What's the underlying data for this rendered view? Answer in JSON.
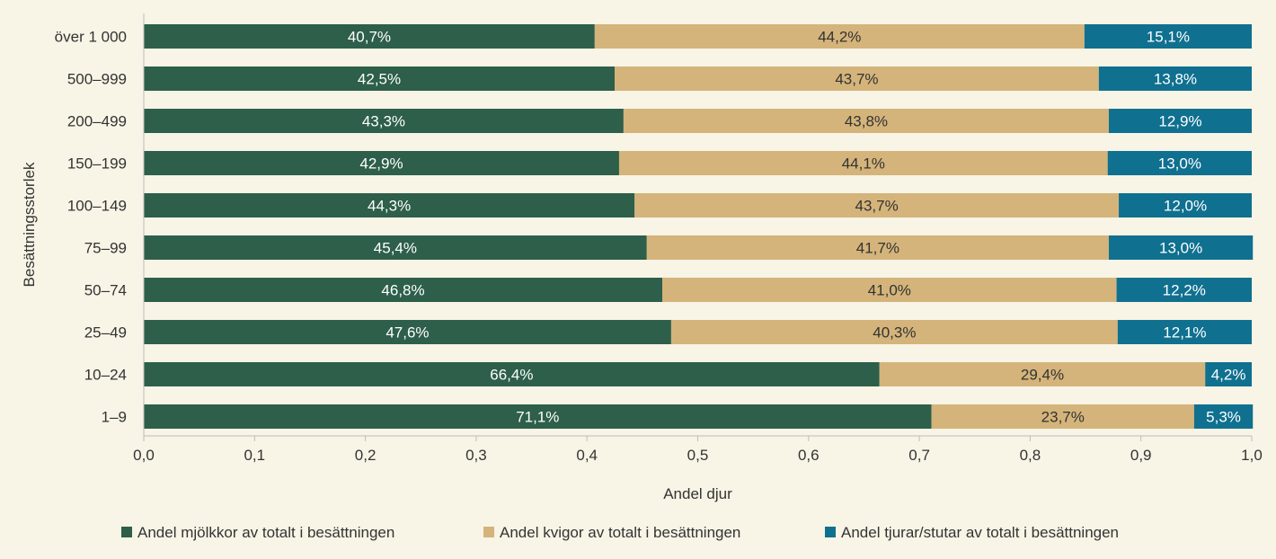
{
  "chart_data": {
    "type": "bar",
    "orientation": "horizontal",
    "stacked": true,
    "categories": [
      "över 1 000",
      "500–999",
      "200–499",
      "150–199",
      "100–149",
      "75–99",
      "50–74",
      "25–49",
      "10–24",
      "1–9"
    ],
    "series": [
      {
        "name": "Andel mjölkkor av totalt i besättningen",
        "color": "#2d5f4a",
        "label_color": "#ffffff",
        "values": [
          0.407,
          0.425,
          0.433,
          0.429,
          0.443,
          0.454,
          0.468,
          0.476,
          0.664,
          0.711
        ],
        "labels": [
          "40,7%",
          "42,5%",
          "43,3%",
          "42,9%",
          "44,3%",
          "45,4%",
          "46,8%",
          "47,6%",
          "66,4%",
          "71,1%"
        ]
      },
      {
        "name": "Andel kvigor av totalt i besättningen",
        "color": "#d4b47a",
        "label_color": "#333333",
        "values": [
          0.442,
          0.437,
          0.438,
          0.441,
          0.437,
          0.417,
          0.41,
          0.403,
          0.294,
          0.237
        ],
        "labels": [
          "44,2%",
          "43,7%",
          "43,8%",
          "44,1%",
          "43,7%",
          "41,7%",
          "41,0%",
          "40,3%",
          "29,4%",
          "23,7%"
        ]
      },
      {
        "name": "Andel tjurar/stutar av totalt i besättningen",
        "color": "#10708f",
        "label_color": "#ffffff",
        "values": [
          0.151,
          0.138,
          0.129,
          0.13,
          0.12,
          0.13,
          0.122,
          0.121,
          0.042,
          0.053
        ],
        "labels": [
          "15,1%",
          "13,8%",
          "12,9%",
          "13,0%",
          "12,0%",
          "13,0%",
          "12,2%",
          "12,1%",
          "4,2%",
          "5,3%"
        ]
      }
    ],
    "xticks": [
      "0,0",
      "0,1",
      "0,2",
      "0,3",
      "0,4",
      "0,5",
      "0,6",
      "0,7",
      "0,8",
      "0,9",
      "1,0"
    ],
    "xlim": [
      0,
      1
    ],
    "xlabel": "Andel djur",
    "ylabel": "Besättningsstorlek",
    "legend_position": "bottom",
    "grid": false
  }
}
